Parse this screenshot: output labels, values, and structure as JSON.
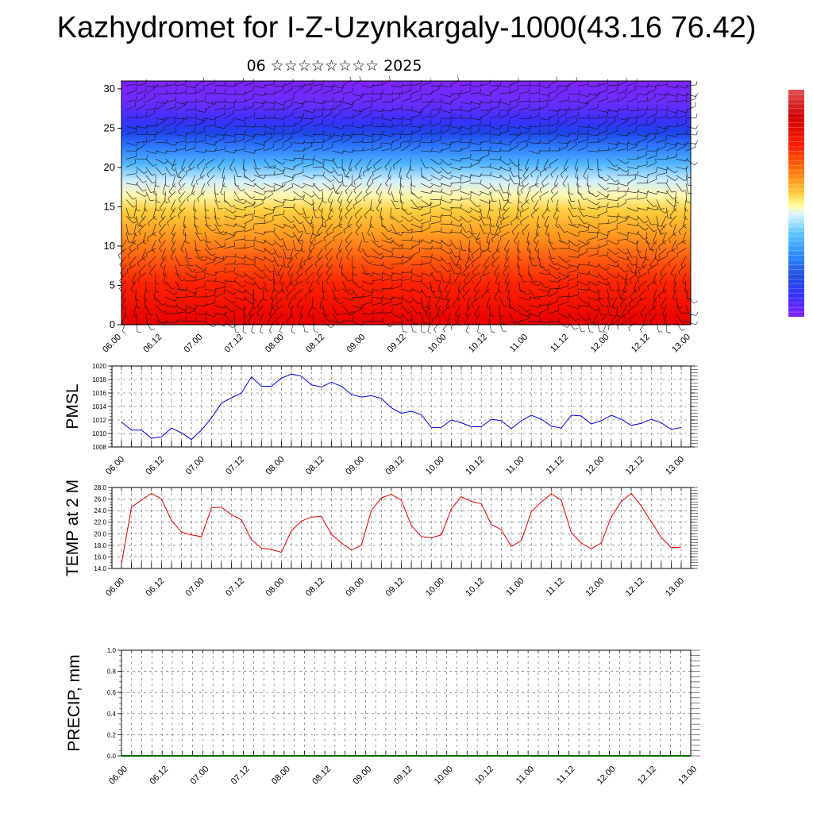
{
  "header": {
    "title": "Kazhydromet for I-Z-Uzynkargaly-1000(43.16 76.42)",
    "subtitle": "06 ☆☆☆☆☆☆☆☆ 2025"
  },
  "colors": {
    "pmsl_line": "#0000dd",
    "temp_line": "#dd0000",
    "precip_baseline": "#006600",
    "grid": "#555555",
    "colorbar": [
      "#7f1fff",
      "#3030ff",
      "#2a6cff",
      "#3fa8ff",
      "#7fdcff",
      "#c8f0ff",
      "#ffff9a",
      "#ffd84a",
      "#ffa020",
      "#ff6010",
      "#ff1a00",
      "#e00000",
      "#c00000"
    ]
  },
  "chart_data": [
    {
      "type": "heatmap",
      "name": "cross-section",
      "x_tick_labels": [
        "06.00",
        "06.12",
        "07.00",
        "07.12",
        "08.00",
        "08.12",
        "09.00",
        "09.12",
        "10.00",
        "10.12",
        "11.00",
        "11.12",
        "12.00",
        "12.12",
        "13.00"
      ],
      "y_tick_labels": [
        "0",
        "5",
        "10",
        "15",
        "20",
        "25",
        "30"
      ],
      "ylim": [
        0,
        31
      ],
      "colormap": "violet-blue-white-yellow-orange-red (high values at bottom)",
      "overlay": "wind barbs"
    },
    {
      "type": "line",
      "ylabel": "PMSL",
      "ylim": [
        1008,
        1020
      ],
      "y_tick_labels": [
        "1008",
        "1010",
        "1012",
        "1014",
        "1016",
        "1018",
        "1020"
      ],
      "x_tick_labels": [
        "06.00",
        "06.12",
        "07.00",
        "07.12",
        "08.00",
        "08.12",
        "09.00",
        "09.12",
        "10.00",
        "10.12",
        "11.00",
        "11.12",
        "12.00",
        "12.12",
        "13.00"
      ],
      "x_step_hours": 3,
      "values": [
        1011.7,
        1010.5,
        1010.5,
        1009.3,
        1009.5,
        1010.8,
        1010.1,
        1009.1,
        1010.5,
        1012.3,
        1014.5,
        1015.3,
        1016.0,
        1018.4,
        1017.0,
        1017.0,
        1018.2,
        1018.8,
        1018.5,
        1017.2,
        1016.9,
        1017.6,
        1017.0,
        1015.8,
        1015.4,
        1015.6,
        1015.2,
        1013.8,
        1013.0,
        1013.3,
        1012.8,
        1010.9,
        1010.9,
        1012.0,
        1011.6,
        1011.0,
        1011.0,
        1012.1,
        1011.9,
        1010.7,
        1011.9,
        1012.7,
        1012.1,
        1011.1,
        1010.8,
        1012.7,
        1012.6,
        1011.4,
        1011.9,
        1012.7,
        1012.1,
        1011.2,
        1011.5,
        1012.1,
        1011.6,
        1010.6,
        1010.9
      ],
      "grid": true
    },
    {
      "type": "line",
      "ylabel": "TEMP at 2 M",
      "ylim": [
        14,
        28
      ],
      "y_tick_labels": [
        "14.0",
        "16.0",
        "18.0",
        "20.0",
        "22.0",
        "24.0",
        "26.0",
        "28.0"
      ],
      "x_tick_labels": [
        "06.00",
        "06.12",
        "07.00",
        "07.12",
        "08.00",
        "08.12",
        "09.00",
        "09.12",
        "10.00",
        "10.12",
        "11.00",
        "11.12",
        "12.00",
        "12.12",
        "13.00"
      ],
      "x_step_hours": 3,
      "values": [
        14.8,
        24.6,
        25.8,
        27.0,
        26.0,
        22.3,
        20.3,
        19.8,
        19.5,
        24.5,
        24.6,
        23.3,
        22.4,
        19.0,
        17.5,
        17.3,
        16.8,
        20.5,
        22.2,
        22.9,
        23.0,
        19.9,
        18.4,
        17.2,
        18.0,
        24.0,
        26.2,
        26.8,
        25.8,
        21.4,
        19.5,
        19.3,
        19.8,
        24.3,
        26.4,
        25.6,
        25.2,
        21.6,
        20.7,
        17.8,
        18.8,
        23.8,
        25.5,
        26.9,
        25.8,
        20.2,
        18.4,
        17.4,
        18.4,
        22.9,
        25.6,
        27.0,
        24.8,
        22.1,
        19.4,
        17.6,
        17.7
      ],
      "grid": true
    },
    {
      "type": "bar",
      "ylabel": "PRECIP, mm",
      "ylim": [
        0.0,
        1.0
      ],
      "y_tick_labels": [
        "0.0",
        "0.2",
        "0.4",
        "0.6",
        "0.8",
        "1.0"
      ],
      "x_tick_labels": [
        "06.00",
        "06.12",
        "07.00",
        "07.12",
        "08.00",
        "08.12",
        "09.00",
        "09.12",
        "10.00",
        "10.12",
        "11.00",
        "11.12",
        "12.00",
        "12.12",
        "13.00"
      ],
      "values": [],
      "grid": true
    }
  ]
}
